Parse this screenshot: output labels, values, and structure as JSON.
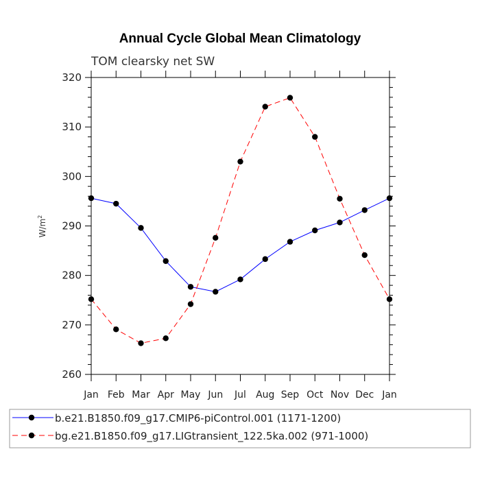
{
  "chart_data": {
    "type": "line",
    "title": "Annual Cycle Global Mean Climatology",
    "subtitle": "TOM clearsky net SW",
    "ylabel": "W/m",
    "ylabel_sup": "2",
    "xlabel": "",
    "categories": [
      "Jan",
      "Feb",
      "Mar",
      "Apr",
      "May",
      "Jun",
      "Jul",
      "Aug",
      "Sep",
      "Oct",
      "Nov",
      "Dec",
      "Jan"
    ],
    "ylim": [
      260,
      320
    ],
    "yticks": [
      260,
      270,
      280,
      290,
      300,
      310,
      320
    ],
    "ytick_labels": [
      "260",
      "270",
      "280",
      "290",
      "300",
      "310",
      "320"
    ],
    "series": [
      {
        "name": "b.e21.B1850.f09_g17.CMIP6-piControl.001 (1171-1200)",
        "color": "#0000ff",
        "dash": "solid",
        "values": [
          295.6,
          294.5,
          289.6,
          282.9,
          277.7,
          276.7,
          279.2,
          283.3,
          286.8,
          289.1,
          290.7,
          293.2,
          295.6
        ]
      },
      {
        "name": "bg.e21.B1850.f09_g17.LIGtransient_122.5ka.002 (971-1000)",
        "color": "#ff0000",
        "dash": "dashed",
        "values": [
          275.2,
          269.1,
          266.3,
          267.3,
          274.2,
          287.6,
          303.0,
          314.1,
          315.9,
          308.0,
          295.5,
          284.1,
          275.2
        ]
      }
    ]
  }
}
